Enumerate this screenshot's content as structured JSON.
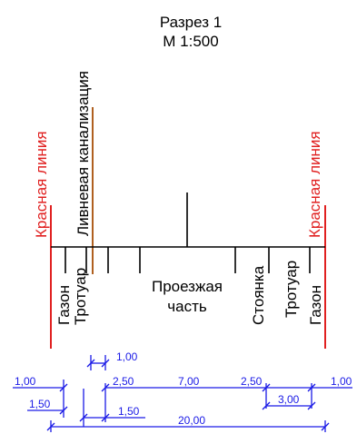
{
  "title": "Разрез 1",
  "scale": "М 1:500",
  "colors": {
    "red_line": "#e02020",
    "sewer": "#b06020",
    "dimension": "#1a1ae6",
    "black": "#000000"
  },
  "labels": {
    "red_line_left": "Красная линия",
    "red_line_right": "Красная линия",
    "sewer": "Ливневая канализация",
    "lawn_left": "Газон",
    "sidewalk_left": "Тротуар",
    "roadway_line1": "Проезжая",
    "roadway_line2": "часть",
    "parking": "Стоянка",
    "sidewalk_right": "Тротуар",
    "lawn_right": "Газон"
  },
  "dimensions": {
    "lawn_left": "1,00",
    "sidewalk_left": "1,50",
    "sewer_offset_top": "1,00",
    "sewer_offset_bottom": "1,50",
    "gap": "2,50",
    "roadway": "7,00",
    "parking_gap": "2,50",
    "sidewalk_right": "3,00",
    "lawn_right": "1,00",
    "total": "20,00"
  }
}
